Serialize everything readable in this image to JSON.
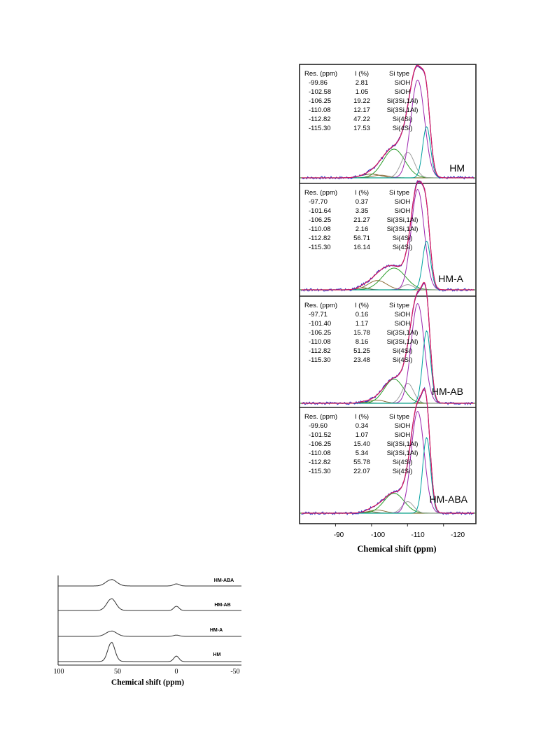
{
  "chart_data": [
    {
      "type": "line",
      "xlabel": "Chemical shift (ppm)",
      "xlim": [
        -80,
        -129
      ],
      "x_ticks": [
        "-90",
        "-100",
        "-110",
        "-120"
      ],
      "table_headers": [
        "Res. (ppm)",
        "I (%)",
        "Si type"
      ],
      "colors": {
        "spectrum": "#2233cc",
        "fit_sum": "#d81b60",
        "envelope": "#6a1b9a",
        "siOH": "#7a5a2a",
        "si3si1al_a": "#2e9e2e",
        "si3si1al_b": "#9e9e9e",
        "si4si_a": "#9c27b0",
        "si4si_b": "#00a0a0",
        "baseline": "#2e9e2e"
      },
      "panels": [
        {
          "label": "HM",
          "components": [
            {
              "res": "-99.86",
              "i": "2.81",
              "type": "SiOH",
              "center": -99.86,
              "amp": 0.035,
              "width": 2.6
            },
            {
              "res": "-102.58",
              "i": "1.05",
              "type": "SiOH",
              "center": -102.58,
              "amp": 0.025,
              "width": 2.2
            },
            {
              "res": "-106.25",
              "i": "19.22",
              "type": "Si(3Si,1Al)",
              "center": -106.25,
              "amp": 0.27,
              "width": 3.0
            },
            {
              "res": "-110.08",
              "i": "12.17",
              "type": "Si(3Si,1Al)",
              "center": -110.08,
              "amp": 0.24,
              "width": 1.8
            },
            {
              "res": "-112.82",
              "i": "47.22",
              "type": "Si(4Si)",
              "center": -112.82,
              "amp": 0.92,
              "width": 1.9
            },
            {
              "res": "-115.30",
              "i": "17.53",
              "type": "Si(4Si)",
              "center": -115.3,
              "amp": 0.48,
              "width": 1.1
            }
          ]
        },
        {
          "label": "HM-A",
          "components": [
            {
              "res": "-97.70",
              "i": "0.37",
              "type": "SiOH",
              "center": -97.7,
              "amp": 0.02,
              "width": 1.5
            },
            {
              "res": "-101.64",
              "i": "3.35",
              "type": "SiOH",
              "center": -101.64,
              "amp": 0.09,
              "width": 2.6
            },
            {
              "res": "-106.25",
              "i": "21.27",
              "type": "Si(3Si,1Al)",
              "center": -106.25,
              "amp": 0.21,
              "width": 3.2
            },
            {
              "res": "-110.08",
              "i": "2.16",
              "type": "Si(3Si,1Al)",
              "center": -110.08,
              "amp": 0.05,
              "width": 1.6
            },
            {
              "res": "-112.82",
              "i": "56.71",
              "type": "Si(4Si)",
              "center": -112.82,
              "amp": 0.97,
              "width": 1.8
            },
            {
              "res": "-115.30",
              "i": "16.14",
              "type": "Si(4Si)",
              "center": -115.3,
              "amp": 0.47,
              "width": 1.1
            }
          ]
        },
        {
          "label": "HM-AB",
          "components": [
            {
              "res": "-97.71",
              "i": "0.16",
              "type": "SiOH",
              "center": -97.71,
              "amp": 0.01,
              "width": 1.4
            },
            {
              "res": "-101.40",
              "i": "1.17",
              "type": "SiOH",
              "center": -101.4,
              "amp": 0.03,
              "width": 2.2
            },
            {
              "res": "-106.25",
              "i": "15.78",
              "type": "Si(3Si,1Al)",
              "center": -106.25,
              "amp": 0.23,
              "width": 2.7
            },
            {
              "res": "-110.08",
              "i": "8.16",
              "type": "Si(3Si,1Al)",
              "center": -110.08,
              "amp": 0.19,
              "width": 1.6
            },
            {
              "res": "-112.82",
              "i": "51.25",
              "type": "Si(4Si)",
              "center": -112.82,
              "amp": 0.95,
              "width": 1.8
            },
            {
              "res": "-115.30",
              "i": "23.48",
              "type": "Si(4Si)",
              "center": -115.3,
              "amp": 0.69,
              "width": 1.1
            }
          ]
        },
        {
          "label": "HM-ABA",
          "components": [
            {
              "res": "-99.60",
              "i": "0.34",
              "type": "SiOH",
              "center": -99.6,
              "amp": 0.015,
              "width": 1.6
            },
            {
              "res": "-101.52",
              "i": "1.07",
              "type": "SiOH",
              "center": -101.52,
              "amp": 0.03,
              "width": 2.2
            },
            {
              "res": "-106.25",
              "i": "15.40",
              "type": "Si(3Si,1Al)",
              "center": -106.25,
              "amp": 0.19,
              "width": 2.8
            },
            {
              "res": "-110.08",
              "i": "5.34",
              "type": "Si(3Si,1Al)",
              "center": -110.08,
              "amp": 0.11,
              "width": 1.6
            },
            {
              "res": "-112.82",
              "i": "55.78",
              "type": "Si(4Si)",
              "center": -112.82,
              "amp": 0.97,
              "width": 1.8
            },
            {
              "res": "-115.30",
              "i": "22.07",
              "type": "Si(4Si)",
              "center": -115.3,
              "amp": 0.72,
              "width": 1.1
            }
          ]
        }
      ]
    },
    {
      "type": "line",
      "xlabel": "Chemical shift (ppm)",
      "xlim": [
        100,
        -55
      ],
      "x_ticks": [
        "100",
        "50",
        "0",
        "-50"
      ],
      "color": "#333333",
      "series": [
        {
          "name": "HM-ABA",
          "peaks": [
            {
              "center": 55,
              "amp": 0.3,
              "width": 4.5
            },
            {
              "center": 0,
              "amp": 0.1,
              "width": 2.5
            }
          ]
        },
        {
          "name": "HM-AB",
          "peaks": [
            {
              "center": 55,
              "amp": 0.55,
              "width": 3.8
            },
            {
              "center": 0,
              "amp": 0.2,
              "width": 2.2
            }
          ]
        },
        {
          "name": "HM-A",
          "peaks": [
            {
              "center": 55,
              "amp": 0.25,
              "width": 4.5
            },
            {
              "center": 0,
              "amp": 0.06,
              "width": 2.5
            }
          ]
        },
        {
          "name": "HM",
          "peaks": [
            {
              "center": 55,
              "amp": 0.9,
              "width": 3.0
            },
            {
              "center": 0,
              "amp": 0.26,
              "width": 2.2
            }
          ]
        }
      ]
    }
  ]
}
